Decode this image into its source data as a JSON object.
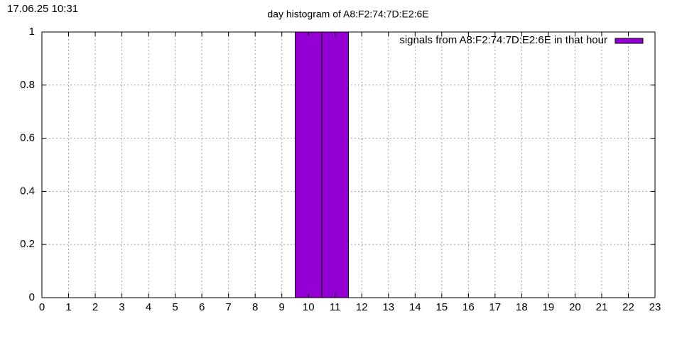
{
  "timestamp": "17.06.25 10:31",
  "chart_data": {
    "type": "bar",
    "title": "day histogram of A8:F2:74:7D:E2:6E",
    "x": [
      0,
      1,
      2,
      3,
      4,
      5,
      6,
      7,
      8,
      9,
      10,
      11,
      12,
      13,
      14,
      15,
      16,
      17,
      18,
      19,
      20,
      21,
      22,
      23
    ],
    "series": [
      {
        "name": "signals from A8:F2:74:7D:E2:6E in that hour",
        "color": "#9400d3",
        "values": [
          0,
          0,
          0,
          0,
          0,
          0,
          0,
          0,
          0,
          0,
          1,
          1,
          0,
          0,
          0,
          0,
          0,
          0,
          0,
          0,
          0,
          0,
          0,
          0
        ]
      }
    ],
    "xlim": [
      0,
      23
    ],
    "xticks": [
      0,
      1,
      2,
      3,
      4,
      5,
      6,
      7,
      8,
      9,
      10,
      11,
      12,
      13,
      14,
      15,
      16,
      17,
      18,
      19,
      20,
      21,
      22,
      23
    ],
    "ylim": [
      0,
      1
    ],
    "yticks": [
      0,
      0.2,
      0.4,
      0.6,
      0.8,
      1
    ],
    "grid": true,
    "legend": "top-right"
  }
}
